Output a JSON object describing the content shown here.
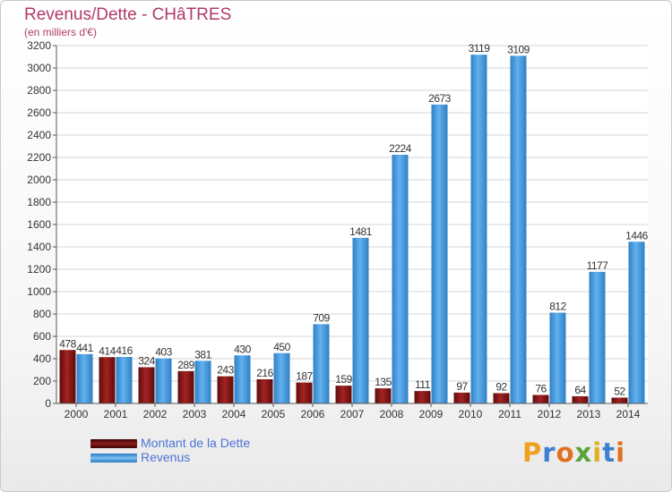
{
  "title": "Revenus/Dette - CHâTRES",
  "subtitle": "(en milliers d'€)",
  "chart_data": {
    "type": "bar",
    "categories": [
      "2000",
      "2001",
      "2002",
      "2003",
      "2004",
      "2005",
      "2006",
      "2007",
      "2008",
      "2009",
      "2010",
      "2011",
      "2012",
      "2013",
      "2014"
    ],
    "series": [
      {
        "name": "Montant de la Dette",
        "color": "#7a1515",
        "values": [
          478,
          414,
          324,
          289,
          243,
          216,
          187,
          159,
          135,
          111,
          97,
          92,
          76,
          64,
          52
        ]
      },
      {
        "name": "Revenus",
        "color": "#3d95dd",
        "values": [
          441,
          416,
          403,
          381,
          430,
          450,
          709,
          1481,
          2224,
          2673,
          3119,
          3109,
          812,
          1177,
          1446
        ]
      }
    ],
    "ylim": [
      0,
      3200
    ],
    "yticks": [
      0,
      200,
      400,
      600,
      800,
      1000,
      1200,
      1400,
      1600,
      1800,
      2000,
      2200,
      2400,
      2600,
      2800,
      3000,
      3200
    ],
    "grid": true,
    "legend_position": "bottom-left"
  },
  "legend": {
    "items": [
      {
        "label": "Montant de la Dette",
        "color": "#6b0f0f"
      },
      {
        "label": "Revenus",
        "color": "#4aa2e6"
      }
    ]
  },
  "logo": {
    "text": "Proxiti",
    "letter_colors": [
      "#f0a020",
      "#3d7fd0",
      "#e07020",
      "#5aa23a",
      "#e0b020",
      "#3d7fd0",
      "#e07020"
    ]
  }
}
